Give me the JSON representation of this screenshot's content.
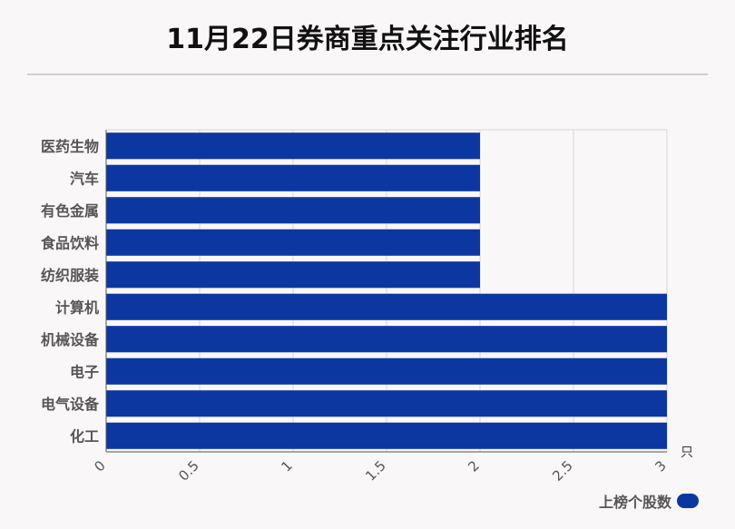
{
  "chart_data": {
    "type": "bar",
    "orientation": "horizontal",
    "title": "11月22日券商重点关注行业排名",
    "categories": [
      "医药生物",
      "汽车",
      "有色金属",
      "食品饮料",
      "纺织服装",
      "计算机",
      "机械设备",
      "电子",
      "电气设备",
      "化工"
    ],
    "series": [
      {
        "name": "上榜个股数",
        "values": [
          2,
          2,
          2,
          2,
          2,
          3,
          3,
          3,
          3,
          3
        ]
      }
    ],
    "x_ticks": [
      "0",
      "0.5",
      "1",
      "1.5",
      "2",
      "2.5",
      "3"
    ],
    "xlim": [
      0,
      3
    ],
    "x_unit": "只",
    "grid": true,
    "legend_position": "bottom-right",
    "bar_color": "#0d37a0"
  }
}
